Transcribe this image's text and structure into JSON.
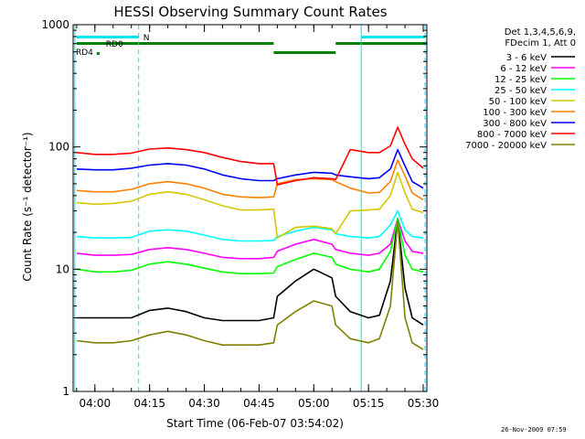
{
  "chart_data": {
    "type": "line",
    "title": "HESSI Observing Summary Count Rates",
    "xlabel": "Start Time (06-Feb-07 03:54:02)",
    "ylabel": "Count Rate (s⁻¹ detector⁻¹)",
    "x_ticks": [
      "04:00",
      "04:15",
      "04:30",
      "04:45",
      "05:00",
      "05:15",
      "05:30"
    ],
    "y_ticks": [
      "1",
      "10",
      "100",
      "1000"
    ],
    "y_scale": "log",
    "xlim": [
      "03:54:02",
      "05:31:00"
    ],
    "ylim": [
      1,
      1000
    ],
    "legend_header": [
      "Det 1,3,4,5,6,9,",
      "FDecim 1, Att 0"
    ],
    "legend_placement": "right",
    "flare_peak_time": "05:23",
    "series": [
      {
        "name": "3 - 6 keV",
        "color": "#000000",
        "x": [
          "03:55",
          "04:00",
          "04:05",
          "04:10",
          "04:15",
          "04:20",
          "04:25",
          "04:30",
          "04:35",
          "04:40",
          "04:45",
          "04:49",
          "04:50",
          "04:55",
          "05:00",
          "05:05",
          "05:06",
          "05:10",
          "05:15",
          "05:18",
          "05:21",
          "05:23",
          "05:25",
          "05:27",
          "05:30"
        ],
        "values": [
          4,
          4,
          4,
          4,
          4.6,
          4.8,
          4.5,
          4,
          3.8,
          3.8,
          3.8,
          4,
          6,
          8,
          10,
          8.5,
          6,
          4.5,
          4,
          4.2,
          8,
          26,
          7,
          4,
          3.5
        ]
      },
      {
        "name": "6 - 12 keV",
        "color": "#ff00ff",
        "x": [
          "03:55",
          "04:00",
          "04:05",
          "04:10",
          "04:15",
          "04:20",
          "04:25",
          "04:30",
          "04:35",
          "04:40",
          "04:45",
          "04:49",
          "04:50",
          "04:55",
          "05:00",
          "05:05",
          "05:06",
          "05:10",
          "05:15",
          "05:18",
          "05:21",
          "05:23",
          "05:25",
          "05:27",
          "05:30"
        ],
        "values": [
          13.5,
          13,
          13,
          13.2,
          14.5,
          15,
          14.5,
          13.5,
          12.5,
          12.2,
          12.2,
          12.5,
          14,
          16,
          17.5,
          16,
          14.5,
          13.5,
          13,
          13.5,
          16,
          26,
          17,
          14,
          13.5
        ]
      },
      {
        "name": "12 - 25 keV",
        "color": "#00ff00",
        "x": [
          "03:55",
          "04:00",
          "04:05",
          "04:10",
          "04:15",
          "04:20",
          "04:25",
          "04:30",
          "04:35",
          "04:40",
          "04:45",
          "04:49",
          "04:50",
          "04:55",
          "05:00",
          "05:05",
          "05:06",
          "05:10",
          "05:15",
          "05:18",
          "05:21",
          "05:23",
          "05:25",
          "05:27",
          "05:30"
        ],
        "values": [
          10,
          9.5,
          9.5,
          9.8,
          11,
          11.5,
          11,
          10.2,
          9.5,
          9.2,
          9.2,
          9.3,
          10.5,
          12,
          13.5,
          12.5,
          11,
          10,
          9.5,
          10,
          14,
          26,
          13,
          10,
          9.5
        ]
      },
      {
        "name": "25 - 50 keV",
        "color": "#00ffff",
        "x": [
          "03:55",
          "04:00",
          "04:05",
          "04:10",
          "04:15",
          "04:20",
          "04:25",
          "04:30",
          "04:35",
          "04:40",
          "04:45",
          "04:49",
          "04:50",
          "04:55",
          "05:00",
          "05:05",
          "05:06",
          "05:10",
          "05:15",
          "05:18",
          "05:21",
          "05:23",
          "05:25",
          "05:27",
          "05:30"
        ],
        "values": [
          18.5,
          18,
          18,
          18.2,
          20.5,
          21,
          20.5,
          19,
          17.5,
          17,
          17,
          17.2,
          18.5,
          20.5,
          22,
          21,
          19.5,
          18.5,
          18,
          18.5,
          23,
          30,
          21,
          18.5,
          18
        ]
      },
      {
        "name": "50 - 100 keV",
        "color": "#d4c800",
        "x": [
          "03:55",
          "04:00",
          "04:05",
          "04:10",
          "04:15",
          "04:20",
          "04:25",
          "04:30",
          "04:35",
          "04:40",
          "04:45",
          "04:49",
          "04:50",
          "04:55",
          "05:00",
          "05:05",
          "05:06",
          "05:10",
          "05:15",
          "05:18",
          "05:21",
          "05:23",
          "05:25",
          "05:27",
          "05:30"
        ],
        "values": [
          35,
          34,
          34.5,
          36,
          41,
          43,
          41,
          37,
          33,
          30.5,
          30.5,
          31,
          18,
          22,
          22.5,
          21.5,
          19.5,
          30,
          30.5,
          31,
          40,
          62,
          42,
          31,
          29
        ]
      },
      {
        "name": "100 - 300 keV",
        "color": "#ff8000",
        "x": [
          "03:55",
          "04:00",
          "04:05",
          "04:10",
          "04:15",
          "04:20",
          "04:25",
          "04:30",
          "04:35",
          "04:40",
          "04:45",
          "04:49",
          "04:50",
          "04:55",
          "05:00",
          "05:05",
          "05:06",
          "05:10",
          "05:15",
          "05:18",
          "05:21",
          "05:23",
          "05:25",
          "05:27",
          "05:30"
        ],
        "values": [
          44,
          43,
          43,
          45,
          50,
          52,
          50,
          46,
          41,
          39,
          38.5,
          39,
          50,
          54,
          55,
          54,
          52,
          46,
          42,
          42.5,
          52,
          78,
          58,
          42,
          37
        ]
      },
      {
        "name": "300 - 800 keV",
        "color": "#0000ff",
        "x": [
          "03:55",
          "04:00",
          "04:05",
          "04:10",
          "04:15",
          "04:20",
          "04:25",
          "04:30",
          "04:35",
          "04:40",
          "04:45",
          "04:49",
          "04:50",
          "04:55",
          "05:00",
          "05:05",
          "05:06",
          "05:10",
          "05:15",
          "05:18",
          "05:21",
          "05:23",
          "05:25",
          "05:27",
          "05:30"
        ],
        "values": [
          66,
          65,
          65,
          67,
          71,
          73,
          71,
          66,
          59,
          55,
          53,
          53,
          55,
          59,
          62,
          61,
          59,
          57,
          55,
          56,
          66,
          95,
          70,
          52,
          46
        ]
      },
      {
        "name": "800 - 7000 keV",
        "color": "#ff0000",
        "x": [
          "03:55",
          "04:00",
          "04:05",
          "04:10",
          "04:15",
          "04:20",
          "04:25",
          "04:30",
          "04:35",
          "04:40",
          "04:45",
          "04:49",
          "04:50",
          "04:55",
          "05:00",
          "05:05",
          "05:06",
          "05:10",
          "05:15",
          "05:18",
          "05:21",
          "05:23",
          "05:25",
          "05:27",
          "05:30"
        ],
        "values": [
          90,
          87,
          87,
          89,
          96,
          98,
          95,
          90,
          82,
          76,
          73,
          73,
          49,
          53,
          56,
          55,
          54,
          95,
          90,
          90,
          102,
          145,
          105,
          80,
          67
        ]
      },
      {
        "name": "7000 - 20000 keV",
        "color": "#808000",
        "x": [
          "03:55",
          "04:00",
          "04:05",
          "04:10",
          "04:15",
          "04:20",
          "04:25",
          "04:30",
          "04:35",
          "04:40",
          "04:45",
          "04:49",
          "04:50",
          "04:55",
          "05:00",
          "05:05",
          "05:06",
          "05:10",
          "05:15",
          "05:18",
          "05:21",
          "05:23",
          "05:25",
          "05:27",
          "05:30"
        ],
        "values": [
          2.6,
          2.5,
          2.5,
          2.6,
          2.9,
          3.1,
          2.9,
          2.6,
          2.4,
          2.4,
          2.4,
          2.5,
          3.5,
          4.5,
          5.5,
          5,
          3.5,
          2.7,
          2.5,
          2.7,
          5,
          25,
          4,
          2.5,
          2.2
        ]
      }
    ],
    "annotations": {
      "rd0_label": "RD0",
      "rd4_label": "RD4",
      "n_label": "N",
      "solid_vlines": [
        "03:54:30",
        "05:13:00"
      ],
      "dashed_vlines": [
        "04:12:00",
        "05:30:30"
      ]
    }
  },
  "footer": {
    "timestamp": "26-Nov-2009 07:59"
  }
}
